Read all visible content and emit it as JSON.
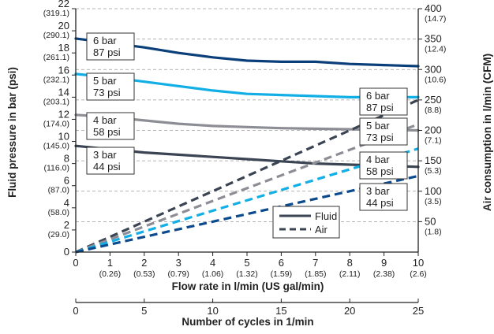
{
  "chart_data": {
    "type": "line",
    "xlabel": "Flow rate in l/min (US gal/min)",
    "x2label": "Number of cycles in 1/min",
    "ylabel": "Fluid pressure in bar (psi)",
    "y2label": "Air consumption in l/min (CFM)",
    "xlim": [
      0,
      10
    ],
    "ylim": [
      0,
      22
    ],
    "y2lim": [
      0,
      400
    ],
    "x2lim": [
      0,
      25
    ],
    "x_ticks": [
      {
        "v": 0,
        "main": "0",
        "sub": ""
      },
      {
        "v": 1,
        "main": "1",
        "sub": "(0.26)"
      },
      {
        "v": 2,
        "main": "2",
        "sub": "(0.53)"
      },
      {
        "v": 3,
        "main": "3",
        "sub": "(0.79)"
      },
      {
        "v": 4,
        "main": "4",
        "sub": "(1.06)"
      },
      {
        "v": 5,
        "main": "5",
        "sub": "(1.32)"
      },
      {
        "v": 6,
        "main": "6",
        "sub": "(1.59)"
      },
      {
        "v": 7,
        "main": "7",
        "sub": "(1.85)"
      },
      {
        "v": 8,
        "main": "8",
        "sub": "(2.11)"
      },
      {
        "v": 9,
        "main": "9",
        "sub": "(2.38)"
      },
      {
        "v": 10,
        "main": "10",
        "sub": "(2.6)"
      }
    ],
    "y_ticks": [
      {
        "v": 0,
        "main": "0",
        "sub": ""
      },
      {
        "v": 2,
        "main": "2",
        "sub": "(29.0)"
      },
      {
        "v": 4,
        "main": "4",
        "sub": "(58.0)"
      },
      {
        "v": 6,
        "main": "6",
        "sub": "(87.0)"
      },
      {
        "v": 8,
        "main": "8",
        "sub": "(116.0)"
      },
      {
        "v": 10,
        "main": "10",
        "sub": "(145.0)"
      },
      {
        "v": 12,
        "main": "12",
        "sub": "(174.0)"
      },
      {
        "v": 14,
        "main": "14",
        "sub": "(203.1)"
      },
      {
        "v": 16,
        "main": "16",
        "sub": "(232.1)"
      },
      {
        "v": 18,
        "main": "18",
        "sub": "(261.1)"
      },
      {
        "v": 20,
        "main": "20",
        "sub": "(290.1)"
      },
      {
        "v": 22,
        "main": "22",
        "sub": "(319.1)"
      }
    ],
    "y2_ticks": [
      {
        "v": 50,
        "main": "50",
        "sub": "(1.8)"
      },
      {
        "v": 100,
        "main": "100",
        "sub": "(3.5)"
      },
      {
        "v": 150,
        "main": "150",
        "sub": "(5.3)"
      },
      {
        "v": 200,
        "main": "200",
        "sub": "(7.1)"
      },
      {
        "v": 250,
        "main": "250",
        "sub": "(8.8)"
      },
      {
        "v": 300,
        "main": "300",
        "sub": "(10.6)"
      },
      {
        "v": 350,
        "main": "350",
        "sub": "(12.4)"
      },
      {
        "v": 400,
        "main": "400",
        "sub": "(14.7)"
      }
    ],
    "x2_ticks": [
      "0",
      "5",
      "10",
      "15",
      "20",
      "25"
    ],
    "grid": "dashed horizontal lines at right-axis ticks",
    "fluid_series": [
      {
        "label": [
          "6 bar",
          "87 psi"
        ],
        "color": "#0b3f7a",
        "x": [
          0,
          1,
          2,
          3,
          4,
          5,
          6,
          7,
          8,
          9,
          10
        ],
        "y": [
          19.3,
          18.9,
          18.5,
          18.0,
          17.6,
          17.3,
          17.2,
          17.2,
          17.0,
          16.9,
          16.8
        ]
      },
      {
        "label": [
          "5 bar",
          "73 psi"
        ],
        "color": "#12aee6",
        "x": [
          0,
          1,
          2,
          3,
          4,
          5,
          6,
          7,
          8,
          9,
          10
        ],
        "y": [
          16.1,
          15.8,
          15.4,
          15.0,
          14.6,
          14.3,
          14.2,
          14.1,
          14.0,
          14.0,
          14.0
        ]
      },
      {
        "label": [
          "4 bar",
          "58 psi"
        ],
        "color": "#8d8e95",
        "x": [
          0,
          1,
          2,
          3,
          4,
          5,
          6,
          7,
          8,
          9,
          10
        ],
        "y": [
          12.4,
          12.2,
          11.9,
          11.6,
          11.4,
          11.3,
          11.2,
          11.15,
          11.1,
          11.05,
          11.0
        ]
      },
      {
        "label": [
          "3 bar",
          "44 psi"
        ],
        "color": "#3b4452",
        "x": [
          0,
          1,
          2,
          3,
          4,
          5,
          6,
          7,
          8,
          9,
          10
        ],
        "y": [
          9.6,
          9.3,
          9.0,
          8.8,
          8.6,
          8.4,
          8.2,
          8.0,
          7.9,
          7.8,
          7.7
        ]
      }
    ],
    "air_series": [
      {
        "label": [
          "6 bar",
          "87 psi"
        ],
        "color": "#3b4452",
        "x": [
          0,
          10
        ],
        "y": [
          0,
          250
        ]
      },
      {
        "label": [
          "5 bar",
          "73 psi"
        ],
        "color": "#8d8e95",
        "x": [
          0,
          10
        ],
        "y": [
          0,
          210
        ]
      },
      {
        "label": [
          "4 bar",
          "58 psi"
        ],
        "color": "#12aee6",
        "x": [
          0,
          10
        ],
        "y": [
          0,
          170
        ]
      },
      {
        "label": [
          "3 bar",
          "44 psi"
        ],
        "color": "#0b4a8c",
        "x": [
          0,
          10
        ],
        "y": [
          0,
          125
        ]
      }
    ],
    "legend": {
      "placement": "lower-right inside plot",
      "items": [
        {
          "name": "Fluid",
          "style": "solid",
          "color": "#3b4452"
        },
        {
          "name": "Air",
          "style": "dashed",
          "color": "#3b4452"
        }
      ]
    }
  }
}
